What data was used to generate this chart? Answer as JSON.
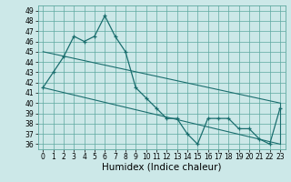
{
  "xlabel": "Humidex (Indice chaleur)",
  "background_color": "#cce8e8",
  "grid_color": "#5da8a0",
  "line_color": "#1a6e6e",
  "x_data": [
    0,
    1,
    2,
    3,
    4,
    5,
    6,
    7,
    8,
    9,
    10,
    11,
    12,
    13,
    14,
    15,
    16,
    17,
    18,
    19,
    20,
    21,
    22,
    23
  ],
  "y_main": [
    41.5,
    43.0,
    44.5,
    46.5,
    46.0,
    46.5,
    48.5,
    46.5,
    45.0,
    41.5,
    40.5,
    39.5,
    38.5,
    38.5,
    37.0,
    36.0,
    38.5,
    38.5,
    38.5,
    37.5,
    37.5,
    36.5,
    36.0,
    39.5
  ],
  "line1_x": [
    0,
    23
  ],
  "line1_y": [
    45.0,
    40.0
  ],
  "line2_x": [
    0,
    23
  ],
  "line2_y": [
    41.5,
    36.0
  ],
  "line3_x": [
    23,
    23
  ],
  "line3_y": [
    40.0,
    36.0
  ],
  "ylim": [
    35.5,
    49.5
  ],
  "xlim": [
    -0.5,
    23.5
  ],
  "yticks": [
    36,
    37,
    38,
    39,
    40,
    41,
    42,
    43,
    44,
    45,
    46,
    47,
    48,
    49
  ],
  "xticks": [
    0,
    1,
    2,
    3,
    4,
    5,
    6,
    7,
    8,
    9,
    10,
    11,
    12,
    13,
    14,
    15,
    16,
    17,
    18,
    19,
    20,
    21,
    22,
    23
  ],
  "tick_fontsize": 5.5,
  "xlabel_fontsize": 7.5
}
